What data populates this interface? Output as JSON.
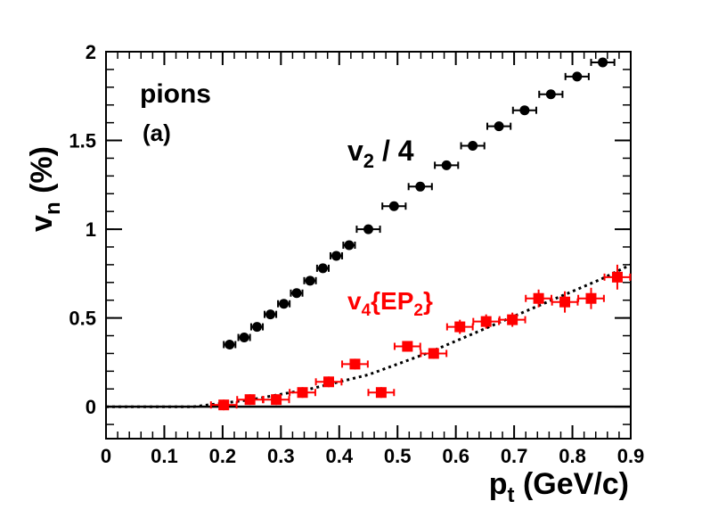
{
  "chart_data": {
    "type": "scatter",
    "title": "",
    "xlabel": {
      "main": "p",
      "sub": "t",
      "rest": " (GeV/c)"
    },
    "ylabel": {
      "main": "v",
      "sub": "n",
      "rest": " (%)"
    },
    "xlim": [
      0,
      0.9
    ],
    "ylim": [
      -0.18,
      2.0
    ],
    "x_ticks": [
      "0",
      "0.1",
      "0.2",
      "0.3",
      "0.4",
      "0.5",
      "0.6",
      "0.7",
      "0.8",
      "0.9"
    ],
    "x_tick_values": [
      0,
      0.1,
      0.2,
      0.3,
      0.4,
      0.5,
      0.6,
      0.7,
      0.8,
      0.9
    ],
    "y_ticks": [
      "0",
      "0.5",
      "1",
      "1.5",
      "2"
    ],
    "y_tick_values": [
      0,
      0.5,
      1.0,
      1.5,
      2.0
    ],
    "annotations": {
      "species": "pions",
      "panel": "(a)",
      "v2_label": {
        "main": "v",
        "sub": "2",
        "rest": " / 4"
      },
      "v4_label": {
        "main": "v",
        "sub": "4",
        "rest1": "{EP",
        "sub2": "2",
        "rest2": "}"
      }
    },
    "colors": {
      "v2": "#000000",
      "v4": "#ff0000",
      "axis": "#000000"
    },
    "series": [
      {
        "name": "v2 / 4",
        "marker": "circle",
        "color": "#000000",
        "x": [
          0.212,
          0.237,
          0.259,
          0.282,
          0.305,
          0.327,
          0.35,
          0.372,
          0.395,
          0.417,
          0.45,
          0.494,
          0.539,
          0.584,
          0.629,
          0.674,
          0.718,
          0.763,
          0.808,
          0.852
        ],
        "y": [
          0.35,
          0.39,
          0.45,
          0.52,
          0.58,
          0.64,
          0.71,
          0.78,
          0.85,
          0.91,
          1.0,
          1.13,
          1.24,
          1.36,
          1.47,
          1.58,
          1.67,
          1.76,
          1.86,
          1.94
        ],
        "x_err": [
          0.01,
          0.01,
          0.01,
          0.01,
          0.01,
          0.01,
          0.01,
          0.01,
          0.01,
          0.01,
          0.02,
          0.02,
          0.02,
          0.02,
          0.02,
          0.02,
          0.02,
          0.02,
          0.02,
          0.02
        ],
        "y_err": [
          0.01,
          0.01,
          0.01,
          0.01,
          0.01,
          0.01,
          0.01,
          0.01,
          0.01,
          0.01,
          0.01,
          0.01,
          0.01,
          0.01,
          0.01,
          0.01,
          0.01,
          0.01,
          0.01,
          0.01
        ]
      },
      {
        "name": "v4{EP2}",
        "marker": "square",
        "color": "#ff0000",
        "x": [
          0.202,
          0.247,
          0.292,
          0.337,
          0.382,
          0.427,
          0.472,
          0.517,
          0.562,
          0.607,
          0.652,
          0.697,
          0.742,
          0.787,
          0.832,
          0.877
        ],
        "y": [
          0.01,
          0.04,
          0.04,
          0.08,
          0.14,
          0.24,
          0.08,
          0.34,
          0.3,
          0.45,
          0.48,
          0.49,
          0.61,
          0.59,
          0.61,
          0.73
        ],
        "x_err": [
          0.022,
          0.022,
          0.022,
          0.022,
          0.022,
          0.022,
          0.022,
          0.022,
          0.022,
          0.022,
          0.022,
          0.022,
          0.022,
          0.022,
          0.022,
          0.022
        ],
        "y_err": [
          0.03,
          0.03,
          0.03,
          0.03,
          0.03,
          0.03,
          0.03,
          0.03,
          0.03,
          0.04,
          0.04,
          0.04,
          0.05,
          0.06,
          0.06,
          0.07
        ]
      }
    ],
    "fit_curve": {
      "name": "fit",
      "style": "dotted",
      "color": "#000000",
      "x": [
        0.0,
        0.05,
        0.1,
        0.15,
        0.2,
        0.25,
        0.3,
        0.35,
        0.4,
        0.45,
        0.5,
        0.55,
        0.6,
        0.65,
        0.7,
        0.75,
        0.8,
        0.85,
        0.9
      ],
      "y": [
        0.0,
        0.0,
        0.0,
        0.0,
        0.02,
        0.04,
        0.07,
        0.1,
        0.14,
        0.18,
        0.24,
        0.3,
        0.37,
        0.44,
        0.51,
        0.58,
        0.65,
        0.72,
        0.8
      ]
    },
    "reference_line": {
      "y": 0
    }
  }
}
